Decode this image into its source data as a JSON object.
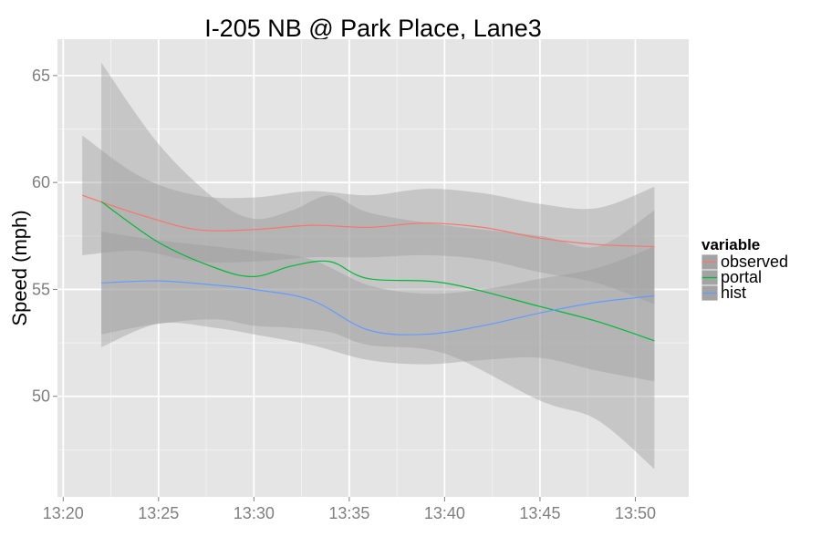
{
  "chart_data": {
    "type": "line",
    "title": "I-205 NB @ Park Place, Lane3",
    "xlabel": "",
    "ylabel": "Speed (mph)",
    "x_ticks": [
      "13:20",
      "13:25",
      "13:30",
      "13:35",
      "13:40",
      "13:45",
      "13:50"
    ],
    "y_ticks": [
      50,
      55,
      60,
      65
    ],
    "xlim": [
      "13:19.7",
      "13:52.8"
    ],
    "ylim": [
      45.3,
      66.7
    ],
    "grid": true,
    "legend": {
      "title": "variable",
      "position": "right"
    },
    "series": [
      {
        "name": "observed",
        "color": "#F8766D",
        "x": [
          "13:21",
          "13:24",
          "13:27",
          "13:30",
          "13:33",
          "13:36",
          "13:39",
          "13:42",
          "13:45",
          "13:48",
          "13:51"
        ],
        "y": [
          59.4,
          58.5,
          57.8,
          57.8,
          58.0,
          57.9,
          58.1,
          57.9,
          57.4,
          57.1,
          57.0
        ],
        "lower": [
          56.6,
          56.8,
          56.3,
          56.3,
          56.5,
          56.5,
          56.6,
          56.4,
          55.8,
          55.3,
          54.3
        ],
        "upper": [
          62.2,
          60.3,
          59.4,
          59.3,
          59.6,
          59.4,
          59.7,
          59.5,
          59.0,
          58.8,
          59.8
        ]
      },
      {
        "name": "portal",
        "color": "#00BA38",
        "x": [
          "13:22",
          "13:25",
          "13:28",
          "13:30",
          "13:32",
          "13:34",
          "13:36",
          "13:40",
          "13:45",
          "13:48",
          "13:51"
        ],
        "y": [
          59.1,
          57.2,
          56.0,
          55.6,
          56.1,
          56.3,
          55.5,
          55.3,
          54.2,
          53.5,
          52.6
        ],
        "lower": [
          52.9,
          53.4,
          53.6,
          53.3,
          53.2,
          53.0,
          52.4,
          52.0,
          49.8,
          48.9,
          46.6
        ],
        "upper": [
          65.6,
          61.8,
          59.2,
          58.3,
          58.7,
          59.4,
          58.6,
          58.0,
          57.5,
          57.0,
          58.7
        ]
      },
      {
        "name": "hist",
        "color": "#619CFF",
        "x": [
          "13:22",
          "13:25",
          "13:28",
          "13:30",
          "13:33",
          "13:36",
          "13:39",
          "13:42",
          "13:45",
          "13:48",
          "13:51"
        ],
        "y": [
          55.3,
          55.4,
          55.2,
          55.0,
          54.5,
          53.1,
          52.9,
          53.3,
          53.9,
          54.4,
          54.7
        ],
        "lower": [
          52.3,
          53.4,
          53.2,
          52.9,
          52.4,
          51.7,
          51.5,
          51.7,
          51.8,
          51.2,
          50.7
        ],
        "upper": [
          57.7,
          57.3,
          57.0,
          56.8,
          56.4,
          55.2,
          54.8,
          55.0,
          55.5,
          56.0,
          57.0
        ]
      }
    ]
  }
}
